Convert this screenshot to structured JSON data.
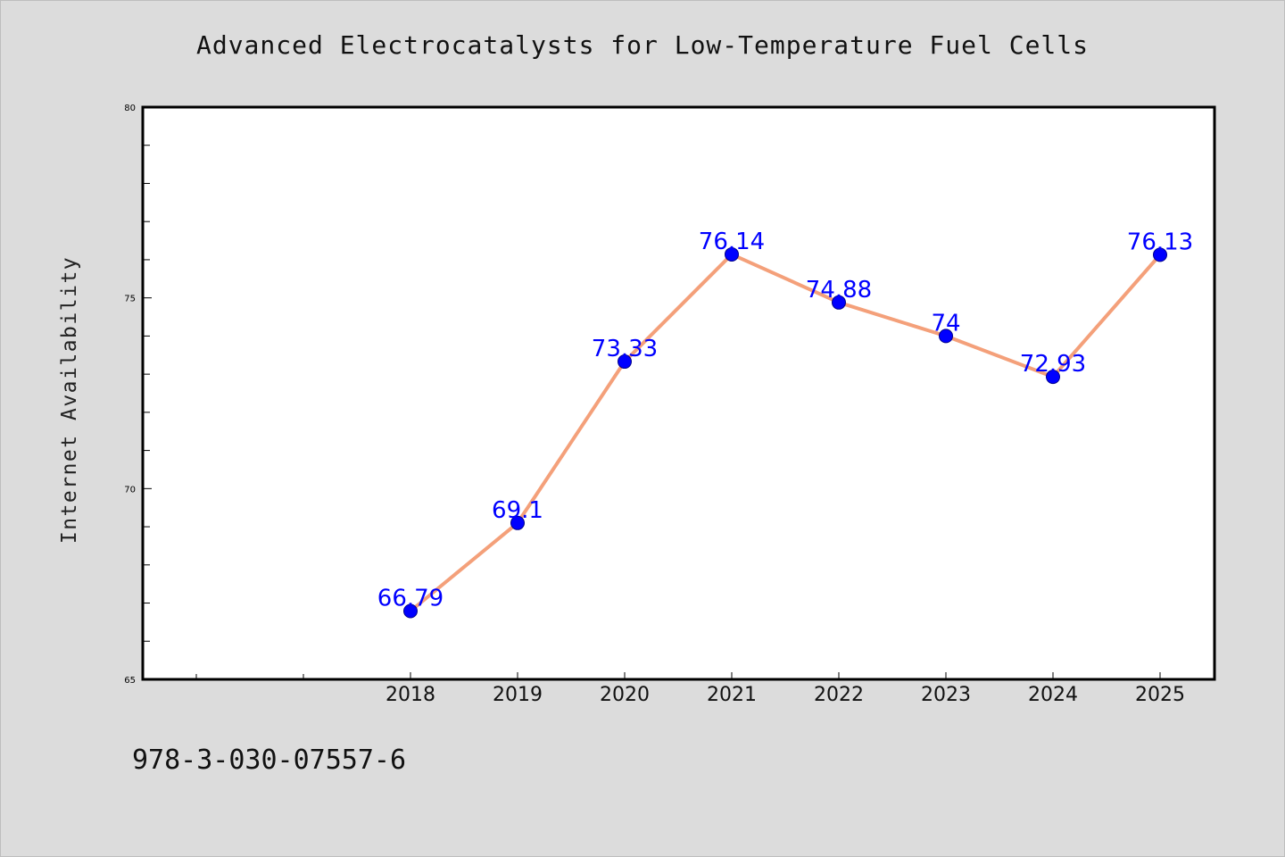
{
  "title": "Advanced Electrocatalysts for Low-Temperature Fuel Cells",
  "footnote": "978-3-030-07557-6",
  "colors": {
    "background": "#dcdcdc",
    "plot_background": "#ffffff",
    "line": "#f4a07a",
    "marker": "#0000ff",
    "data_label": "#0000ff"
  },
  "chart_data": {
    "type": "line",
    "title": "Advanced Electrocatalysts for Low-Temperature Fuel Cells",
    "xlabel": "",
    "ylabel": "Internet Availability",
    "categories": [
      "2018",
      "2019",
      "2020",
      "2021",
      "2022",
      "2023",
      "2024",
      "2025"
    ],
    "series": [
      {
        "values": [
          66.79,
          69.1,
          73.33,
          76.14,
          74.88,
          74,
          72.93,
          76.13
        ],
        "labels": [
          "66.79",
          "69.1",
          "73.33",
          "76.14",
          "74.88",
          "74",
          "72.93",
          "76.13"
        ]
      }
    ],
    "ylim": [
      65,
      80
    ],
    "yticks": [
      "65",
      "70",
      "75",
      "80"
    ],
    "grid": false,
    "legend": "none"
  }
}
